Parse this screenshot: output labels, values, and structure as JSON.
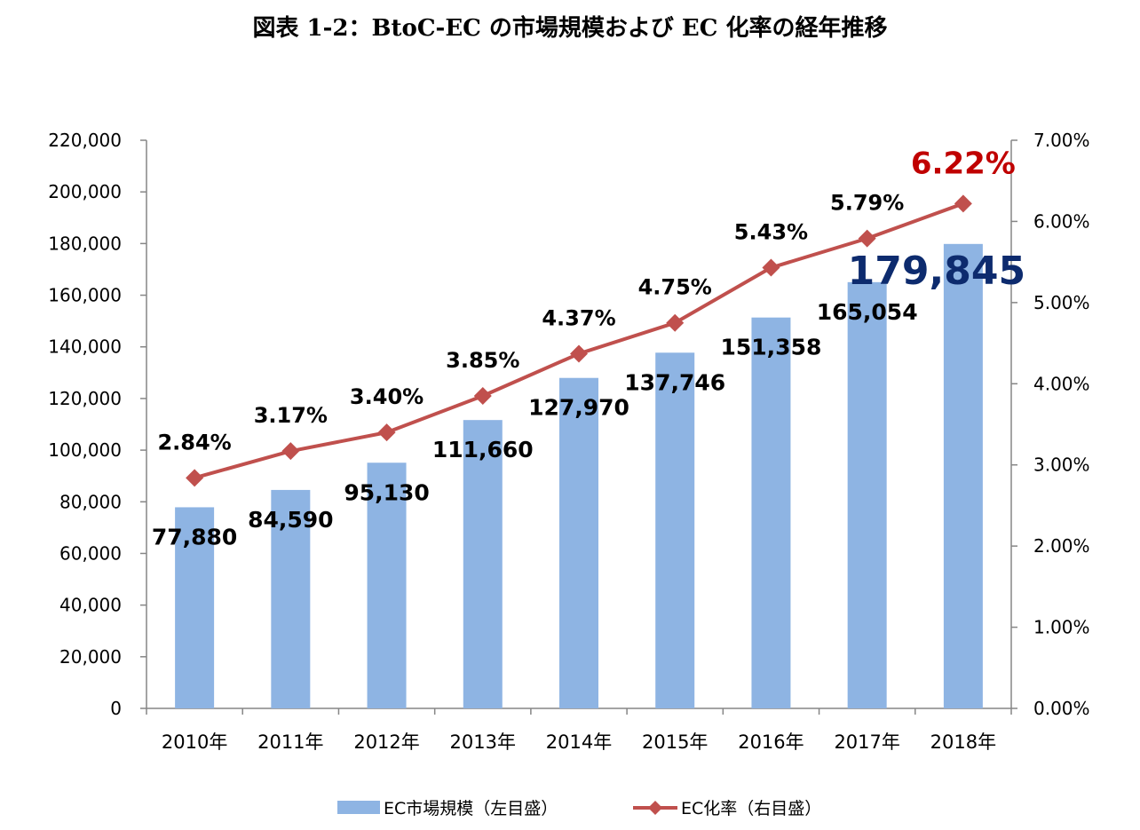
{
  "title": "図表 1-2：BtoC-EC の市場規模および EC 化率の経年推移",
  "chart_data": {
    "type": "bar",
    "categories": [
      "2010年",
      "2011年",
      "2012年",
      "2013年",
      "2014年",
      "2015年",
      "2016年",
      "2017年",
      "2018年"
    ],
    "series": [
      {
        "name": "EC市場規模（左目盛）",
        "type": "bar",
        "axis": "left",
        "values": [
          77880,
          84590,
          95130,
          111660,
          127970,
          137746,
          151358,
          165054,
          179845
        ],
        "labels": [
          "77,880",
          "84,590",
          "95,130",
          "111,660",
          "127,970",
          "137,746",
          "151,358",
          "165,054",
          "179,845"
        ],
        "color": "#8EB4E3",
        "highlight_label_color": "#0D2B6E"
      },
      {
        "name": "EC化率（右目盛）",
        "type": "line",
        "axis": "right",
        "values": [
          2.84,
          3.17,
          3.4,
          3.85,
          4.37,
          4.75,
          5.43,
          5.79,
          6.22
        ],
        "labels": [
          "2.84%",
          "3.17%",
          "3.40%",
          "3.85%",
          "4.37%",
          "4.75%",
          "5.43%",
          "5.79%",
          "6.22%"
        ],
        "color": "#C0504D",
        "highlight_label_color": "#C00000"
      }
    ],
    "y_left": {
      "min": 0,
      "max": 220000,
      "ticks": [
        "0",
        "20,000",
        "40,000",
        "60,000",
        "80,000",
        "100,000",
        "120,000",
        "140,000",
        "160,000",
        "180,000",
        "200,000",
        "220,000"
      ]
    },
    "y_right": {
      "min": 0,
      "max": 7,
      "ticks": [
        "0.00%",
        "1.00%",
        "2.00%",
        "3.00%",
        "4.00%",
        "5.00%",
        "6.00%",
        "7.00%"
      ]
    },
    "grid": false,
    "legend_position": "bottom"
  }
}
